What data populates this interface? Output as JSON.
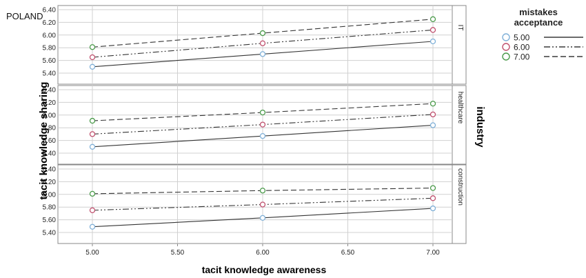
{
  "corner_label": "POLAND",
  "chart_data": {
    "type": "line",
    "xlabel": "tacit knowledge awareness",
    "ylabel": "tacit knowledge sharing",
    "facet_title": "industry",
    "x_ticks": [
      "5.00",
      "5.50",
      "6.00",
      "6.50",
      "7.00"
    ],
    "y_ticks": [
      "5.40",
      "5.60",
      "5.80",
      "6.00",
      "6.20",
      "6.40"
    ],
    "xlim": [
      4.95,
      7.05
    ],
    "ylim": [
      5.38,
      6.42
    ],
    "grid": true,
    "legend": {
      "title": "mistakes acceptance",
      "position": "top-right",
      "entries": [
        {
          "label": "5.00",
          "color": "#7fb0d8",
          "line": "solid"
        },
        {
          "label": "6.00",
          "color": "#c0506e",
          "line": "dash-dot-dot"
        },
        {
          "label": "7.00",
          "color": "#4a9a4a",
          "line": "dashed"
        }
      ]
    },
    "x": [
      5.0,
      6.0,
      7.0
    ],
    "panels": [
      {
        "name": "IT",
        "series": [
          {
            "name": "5.00",
            "values": [
              5.5,
              5.7,
              5.9
            ]
          },
          {
            "name": "6.00",
            "values": [
              5.65,
              5.87,
              6.08
            ]
          },
          {
            "name": "7.00",
            "values": [
              5.81,
              6.03,
              6.25
            ]
          }
        ]
      },
      {
        "name": "healthcare",
        "series": [
          {
            "name": "5.00",
            "values": [
              5.5,
              5.67,
              5.84
            ]
          },
          {
            "name": "6.00",
            "values": [
              5.7,
              5.85,
              6.01
            ]
          },
          {
            "name": "7.00",
            "values": [
              5.91,
              6.04,
              6.18
            ]
          }
        ]
      },
      {
        "name": "construction",
        "series": [
          {
            "name": "5.00",
            "values": [
              5.49,
              5.63,
              5.78
            ]
          },
          {
            "name": "6.00",
            "values": [
              5.75,
              5.84,
              5.94
            ]
          },
          {
            "name": "7.00",
            "values": [
              6.01,
              6.06,
              6.1
            ]
          }
        ]
      }
    ]
  }
}
